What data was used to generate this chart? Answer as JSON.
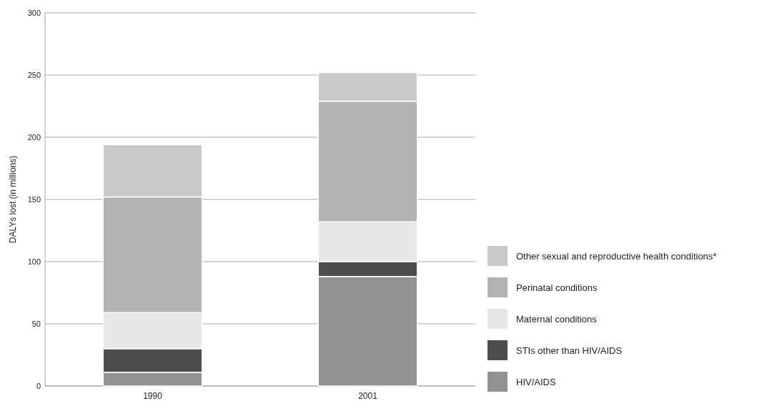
{
  "chart_data": {
    "type": "bar",
    "stacked": true,
    "ylabel": "DALYs lost (in millions)",
    "categories": [
      "1990",
      "2001"
    ],
    "series": [
      {
        "name": "HIV/AIDS",
        "color": "#939393",
        "values": [
          11,
          88
        ]
      },
      {
        "name": "STIs other than HIV/AIDS",
        "color": "#4d4d4d",
        "values": [
          19,
          12
        ]
      },
      {
        "name": "Maternal conditions",
        "color": "#e8e8e8",
        "values": [
          29,
          32
        ]
      },
      {
        "name": "Perinatal conditions",
        "color": "#b3b3b3",
        "values": [
          93,
          97
        ]
      },
      {
        "name": "Other sexual and reproductive health conditions*",
        "color": "#c9c9c9",
        "values": [
          42,
          23
        ]
      }
    ],
    "ylim": [
      0,
      300
    ],
    "yticks": [
      0,
      50,
      100,
      150,
      200,
      250,
      300
    ],
    "grid": "y",
    "legend": "bottom right"
  }
}
